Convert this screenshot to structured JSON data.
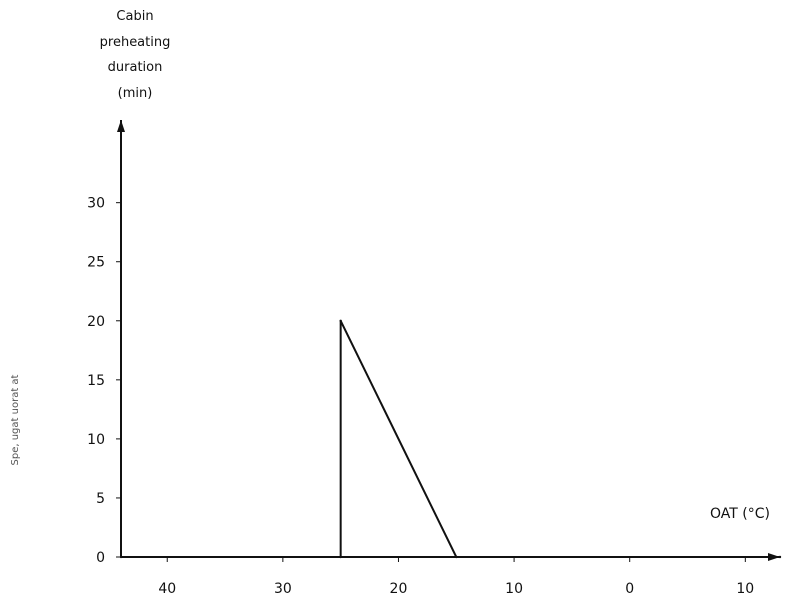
{
  "chart_data": {
    "type": "line",
    "ylabel_lines": [
      "Cabin",
      "preheating",
      "duration",
      "(min)"
    ],
    "xlabel": "OAT (°C)",
    "side_note": "Spe, ugat uorat at",
    "x_ticks": [
      {
        "value": -40,
        "label": "40"
      },
      {
        "value": -30,
        "label": "30"
      },
      {
        "value": -20,
        "label": "20"
      },
      {
        "value": -10,
        "label": "10"
      },
      {
        "value": 0,
        "label": "0"
      },
      {
        "value": 10,
        "label": "10"
      }
    ],
    "y_ticks": [
      {
        "value": 0,
        "label": "0"
      },
      {
        "value": 5,
        "label": "5"
      },
      {
        "value": 10,
        "label": "10"
      },
      {
        "value": 15,
        "label": "15"
      },
      {
        "value": 20,
        "label": "20"
      },
      {
        "value": 25,
        "label": "25"
      },
      {
        "value": 30,
        "label": "30"
      }
    ],
    "xlim": [
      -44,
      13
    ],
    "ylim": [
      0,
      37
    ],
    "series": [
      {
        "x": [
          -44,
          -25,
          -25,
          -15,
          13
        ],
        "y": [
          0,
          0,
          20,
          0,
          0
        ],
        "color": "#111111"
      }
    ],
    "grid": false
  }
}
